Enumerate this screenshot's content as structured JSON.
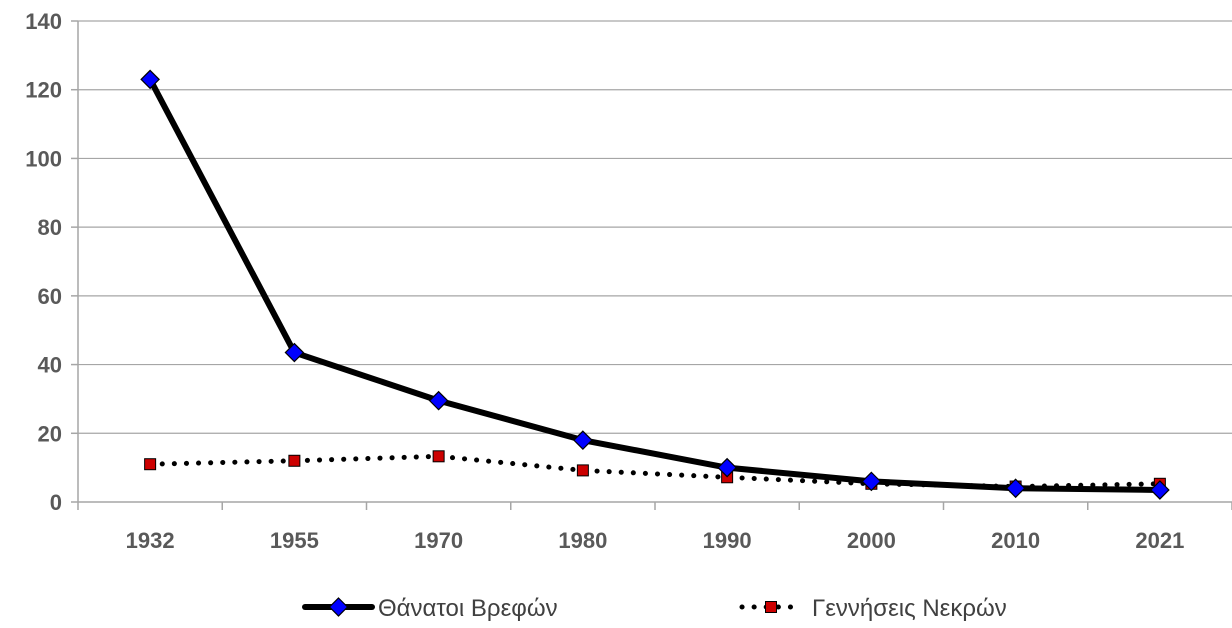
{
  "chart_data": {
    "type": "line",
    "categories": [
      "1932",
      "1955",
      "1970",
      "1980",
      "1990",
      "2000",
      "2010",
      "2021"
    ],
    "ylim": [
      0,
      140
    ],
    "yticks": [
      0,
      20,
      40,
      60,
      80,
      100,
      120,
      140
    ],
    "grid": true,
    "legend_placement": "bottom",
    "series": [
      {
        "name": "Θάνατοι Βρεφών",
        "values": [
          123,
          43.5,
          29.5,
          18,
          10,
          6,
          4,
          3.5
        ],
        "line_color": "#000000",
        "marker": "diamond",
        "marker_color": "#0000ff",
        "line_style": "solid"
      },
      {
        "name": "Γεννήσεις Νεκρών",
        "values": [
          11,
          12,
          13.3,
          9.2,
          7.2,
          5.3,
          4.5,
          5.3
        ],
        "line_color": "#000000",
        "marker": "square",
        "marker_color": "#cc0000",
        "line_style": "dotted"
      }
    ]
  }
}
